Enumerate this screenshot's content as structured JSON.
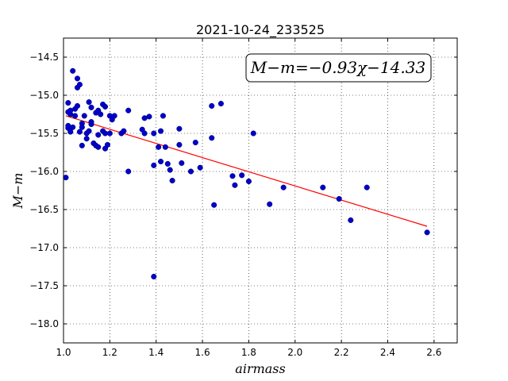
{
  "chart_data": {
    "type": "scatter",
    "title": "2021-10-24_233525",
    "xlabel": "airmass",
    "ylabel": "M−m",
    "xlim": [
      1.0,
      2.7
    ],
    "ylim": [
      -18.25,
      -14.25
    ],
    "x_ticks": [
      1.0,
      1.2,
      1.4,
      1.6,
      1.8,
      2.0,
      2.2,
      2.4,
      2.6
    ],
    "x_tick_labels": [
      "1.0",
      "1.2",
      "1.4",
      "1.6",
      "1.8",
      "2.0",
      "2.2",
      "2.4",
      "2.6"
    ],
    "y_ticks": [
      -14.5,
      -15.0,
      -15.5,
      -16.0,
      -16.5,
      -17.0,
      -17.5,
      -18.0
    ],
    "y_tick_labels": [
      "−14.5",
      "−15.0",
      "−15.5",
      "−16.0",
      "−16.5",
      "−17.0",
      "−17.5",
      "−18.0"
    ],
    "grid": true,
    "annotation": "M−m=−0.93χ−14.33",
    "fit": {
      "slope": -0.93,
      "intercept": -14.33,
      "x_range": [
        1.01,
        2.57
      ],
      "color": "#ff0000"
    },
    "point_color": "#0000cc",
    "points": [
      [
        1.01,
        -16.08
      ],
      [
        1.02,
        -15.43
      ],
      [
        1.02,
        -15.4
      ],
      [
        1.02,
        -15.1
      ],
      [
        1.02,
        -15.22
      ],
      [
        1.03,
        -15.25
      ],
      [
        1.03,
        -15.48
      ],
      [
        1.03,
        -15.2
      ],
      [
        1.04,
        -14.68
      ],
      [
        1.04,
        -15.42
      ],
      [
        1.05,
        -15.18
      ],
      [
        1.05,
        -15.27
      ],
      [
        1.06,
        -14.78
      ],
      [
        1.06,
        -14.9
      ],
      [
        1.06,
        -15.14
      ],
      [
        1.07,
        -14.86
      ],
      [
        1.07,
        -15.48
      ],
      [
        1.08,
        -15.37
      ],
      [
        1.08,
        -15.42
      ],
      [
        1.08,
        -15.66
      ],
      [
        1.09,
        -15.27
      ],
      [
        1.1,
        -15.57
      ],
      [
        1.1,
        -15.5
      ],
      [
        1.11,
        -15.47
      ],
      [
        1.11,
        -15.09
      ],
      [
        1.12,
        -15.16
      ],
      [
        1.12,
        -15.35
      ],
      [
        1.12,
        -15.38
      ],
      [
        1.13,
        -15.63
      ],
      [
        1.14,
        -15.66
      ],
      [
        1.14,
        -15.23
      ],
      [
        1.15,
        -15.68
      ],
      [
        1.15,
        -15.2
      ],
      [
        1.15,
        -15.52
      ],
      [
        1.16,
        -15.25
      ],
      [
        1.17,
        -15.12
      ],
      [
        1.17,
        -15.47
      ],
      [
        1.18,
        -15.5
      ],
      [
        1.18,
        -15.15
      ],
      [
        1.18,
        -15.7
      ],
      [
        1.19,
        -15.65
      ],
      [
        1.2,
        -15.27
      ],
      [
        1.2,
        -15.5
      ],
      [
        1.21,
        -15.32
      ],
      [
        1.22,
        -15.27
      ],
      [
        1.25,
        -15.5
      ],
      [
        1.26,
        -15.47
      ],
      [
        1.28,
        -15.2
      ],
      [
        1.28,
        -16.0
      ],
      [
        1.34,
        -15.45
      ],
      [
        1.35,
        -15.3
      ],
      [
        1.35,
        -15.5
      ],
      [
        1.37,
        -15.28
      ],
      [
        1.39,
        -15.5
      ],
      [
        1.39,
        -15.92
      ],
      [
        1.39,
        -17.38
      ],
      [
        1.41,
        -15.68
      ],
      [
        1.42,
        -15.47
      ],
      [
        1.42,
        -15.87
      ],
      [
        1.43,
        -15.27
      ],
      [
        1.44,
        -15.68
      ],
      [
        1.45,
        -15.9
      ],
      [
        1.46,
        -15.98
      ],
      [
        1.47,
        -16.12
      ],
      [
        1.5,
        -15.65
      ],
      [
        1.51,
        -15.89
      ],
      [
        1.5,
        -15.44
      ],
      [
        1.55,
        -16.0
      ],
      [
        1.57,
        -15.62
      ],
      [
        1.59,
        -15.95
      ],
      [
        1.64,
        -15.56
      ],
      [
        1.64,
        -15.14
      ],
      [
        1.65,
        -16.44
      ],
      [
        1.68,
        -15.11
      ],
      [
        1.73,
        -16.06
      ],
      [
        1.74,
        -16.18
      ],
      [
        1.77,
        -16.05
      ],
      [
        1.8,
        -16.13
      ],
      [
        1.82,
        -15.5
      ],
      [
        1.89,
        -16.43
      ],
      [
        1.95,
        -16.21
      ],
      [
        2.12,
        -16.21
      ],
      [
        2.19,
        -16.36
      ],
      [
        2.24,
        -16.64
      ],
      [
        2.31,
        -16.21
      ],
      [
        2.57,
        -16.8
      ]
    ]
  }
}
